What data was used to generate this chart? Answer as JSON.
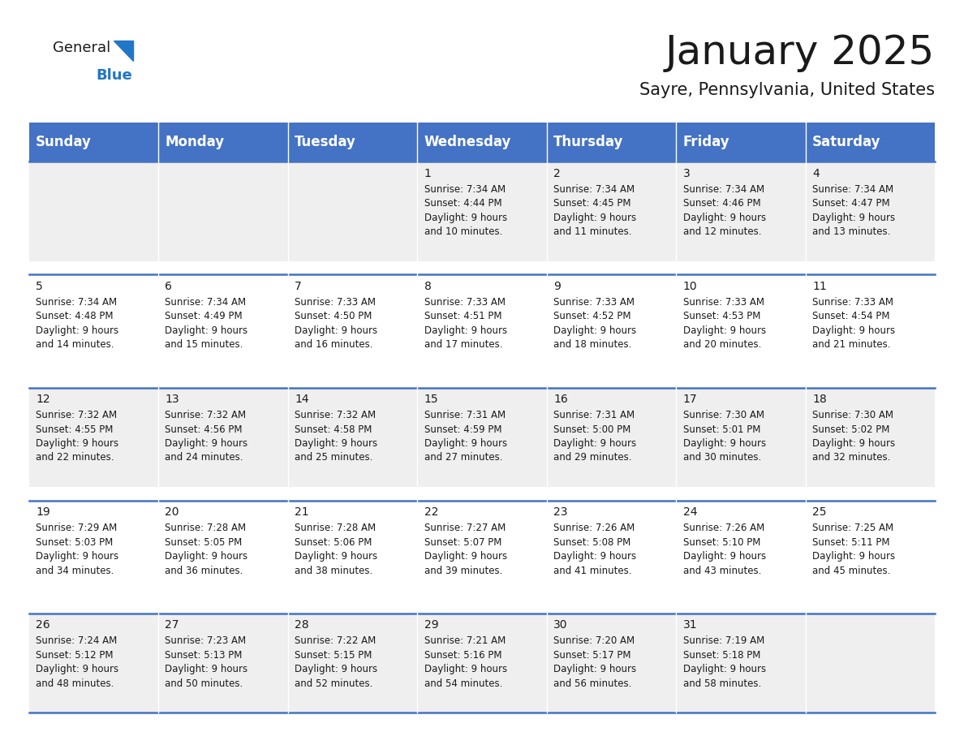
{
  "title": "January 2025",
  "subtitle": "Sayre, Pennsylvania, United States",
  "header_bg_color": "#4472C4",
  "header_text_color": "#FFFFFF",
  "weekdays": [
    "Sunday",
    "Monday",
    "Tuesday",
    "Wednesday",
    "Thursday",
    "Friday",
    "Saturday"
  ],
  "row_bg_even": "#EFEFEF",
  "row_bg_odd": "#FFFFFF",
  "cell_border_color": "#4472C4",
  "title_fontsize": 36,
  "subtitle_fontsize": 15,
  "header_fontsize": 12,
  "cell_fontsize": 8.5,
  "day_num_fontsize": 10,
  "days": [
    {
      "day": 1,
      "col": 3,
      "row": 0,
      "sunrise": "7:34 AM",
      "sunset": "4:44 PM",
      "daylight_line1": "Daylight: 9 hours",
      "daylight_line2": "and 10 minutes."
    },
    {
      "day": 2,
      "col": 4,
      "row": 0,
      "sunrise": "7:34 AM",
      "sunset": "4:45 PM",
      "daylight_line1": "Daylight: 9 hours",
      "daylight_line2": "and 11 minutes."
    },
    {
      "day": 3,
      "col": 5,
      "row": 0,
      "sunrise": "7:34 AM",
      "sunset": "4:46 PM",
      "daylight_line1": "Daylight: 9 hours",
      "daylight_line2": "and 12 minutes."
    },
    {
      "day": 4,
      "col": 6,
      "row": 0,
      "sunrise": "7:34 AM",
      "sunset": "4:47 PM",
      "daylight_line1": "Daylight: 9 hours",
      "daylight_line2": "and 13 minutes."
    },
    {
      "day": 5,
      "col": 0,
      "row": 1,
      "sunrise": "7:34 AM",
      "sunset": "4:48 PM",
      "daylight_line1": "Daylight: 9 hours",
      "daylight_line2": "and 14 minutes."
    },
    {
      "day": 6,
      "col": 1,
      "row": 1,
      "sunrise": "7:34 AM",
      "sunset": "4:49 PM",
      "daylight_line1": "Daylight: 9 hours",
      "daylight_line2": "and 15 minutes."
    },
    {
      "day": 7,
      "col": 2,
      "row": 1,
      "sunrise": "7:33 AM",
      "sunset": "4:50 PM",
      "daylight_line1": "Daylight: 9 hours",
      "daylight_line2": "and 16 minutes."
    },
    {
      "day": 8,
      "col": 3,
      "row": 1,
      "sunrise": "7:33 AM",
      "sunset": "4:51 PM",
      "daylight_line1": "Daylight: 9 hours",
      "daylight_line2": "and 17 minutes."
    },
    {
      "day": 9,
      "col": 4,
      "row": 1,
      "sunrise": "7:33 AM",
      "sunset": "4:52 PM",
      "daylight_line1": "Daylight: 9 hours",
      "daylight_line2": "and 18 minutes."
    },
    {
      "day": 10,
      "col": 5,
      "row": 1,
      "sunrise": "7:33 AM",
      "sunset": "4:53 PM",
      "daylight_line1": "Daylight: 9 hours",
      "daylight_line2": "and 20 minutes."
    },
    {
      "day": 11,
      "col": 6,
      "row": 1,
      "sunrise": "7:33 AM",
      "sunset": "4:54 PM",
      "daylight_line1": "Daylight: 9 hours",
      "daylight_line2": "and 21 minutes."
    },
    {
      "day": 12,
      "col": 0,
      "row": 2,
      "sunrise": "7:32 AM",
      "sunset": "4:55 PM",
      "daylight_line1": "Daylight: 9 hours",
      "daylight_line2": "and 22 minutes."
    },
    {
      "day": 13,
      "col": 1,
      "row": 2,
      "sunrise": "7:32 AM",
      "sunset": "4:56 PM",
      "daylight_line1": "Daylight: 9 hours",
      "daylight_line2": "and 24 minutes."
    },
    {
      "day": 14,
      "col": 2,
      "row": 2,
      "sunrise": "7:32 AM",
      "sunset": "4:58 PM",
      "daylight_line1": "Daylight: 9 hours",
      "daylight_line2": "and 25 minutes."
    },
    {
      "day": 15,
      "col": 3,
      "row": 2,
      "sunrise": "7:31 AM",
      "sunset": "4:59 PM",
      "daylight_line1": "Daylight: 9 hours",
      "daylight_line2": "and 27 minutes."
    },
    {
      "day": 16,
      "col": 4,
      "row": 2,
      "sunrise": "7:31 AM",
      "sunset": "5:00 PM",
      "daylight_line1": "Daylight: 9 hours",
      "daylight_line2": "and 29 minutes."
    },
    {
      "day": 17,
      "col": 5,
      "row": 2,
      "sunrise": "7:30 AM",
      "sunset": "5:01 PM",
      "daylight_line1": "Daylight: 9 hours",
      "daylight_line2": "and 30 minutes."
    },
    {
      "day": 18,
      "col": 6,
      "row": 2,
      "sunrise": "7:30 AM",
      "sunset": "5:02 PM",
      "daylight_line1": "Daylight: 9 hours",
      "daylight_line2": "and 32 minutes."
    },
    {
      "day": 19,
      "col": 0,
      "row": 3,
      "sunrise": "7:29 AM",
      "sunset": "5:03 PM",
      "daylight_line1": "Daylight: 9 hours",
      "daylight_line2": "and 34 minutes."
    },
    {
      "day": 20,
      "col": 1,
      "row": 3,
      "sunrise": "7:28 AM",
      "sunset": "5:05 PM",
      "daylight_line1": "Daylight: 9 hours",
      "daylight_line2": "and 36 minutes."
    },
    {
      "day": 21,
      "col": 2,
      "row": 3,
      "sunrise": "7:28 AM",
      "sunset": "5:06 PM",
      "daylight_line1": "Daylight: 9 hours",
      "daylight_line2": "and 38 minutes."
    },
    {
      "day": 22,
      "col": 3,
      "row": 3,
      "sunrise": "7:27 AM",
      "sunset": "5:07 PM",
      "daylight_line1": "Daylight: 9 hours",
      "daylight_line2": "and 39 minutes."
    },
    {
      "day": 23,
      "col": 4,
      "row": 3,
      "sunrise": "7:26 AM",
      "sunset": "5:08 PM",
      "daylight_line1": "Daylight: 9 hours",
      "daylight_line2": "and 41 minutes."
    },
    {
      "day": 24,
      "col": 5,
      "row": 3,
      "sunrise": "7:26 AM",
      "sunset": "5:10 PM",
      "daylight_line1": "Daylight: 9 hours",
      "daylight_line2": "and 43 minutes."
    },
    {
      "day": 25,
      "col": 6,
      "row": 3,
      "sunrise": "7:25 AM",
      "sunset": "5:11 PM",
      "daylight_line1": "Daylight: 9 hours",
      "daylight_line2": "and 45 minutes."
    },
    {
      "day": 26,
      "col": 0,
      "row": 4,
      "sunrise": "7:24 AM",
      "sunset": "5:12 PM",
      "daylight_line1": "Daylight: 9 hours",
      "daylight_line2": "and 48 minutes."
    },
    {
      "day": 27,
      "col": 1,
      "row": 4,
      "sunrise": "7:23 AM",
      "sunset": "5:13 PM",
      "daylight_line1": "Daylight: 9 hours",
      "daylight_line2": "and 50 minutes."
    },
    {
      "day": 28,
      "col": 2,
      "row": 4,
      "sunrise": "7:22 AM",
      "sunset": "5:15 PM",
      "daylight_line1": "Daylight: 9 hours",
      "daylight_line2": "and 52 minutes."
    },
    {
      "day": 29,
      "col": 3,
      "row": 4,
      "sunrise": "7:21 AM",
      "sunset": "5:16 PM",
      "daylight_line1": "Daylight: 9 hours",
      "daylight_line2": "and 54 minutes."
    },
    {
      "day": 30,
      "col": 4,
      "row": 4,
      "sunrise": "7:20 AM",
      "sunset": "5:17 PM",
      "daylight_line1": "Daylight: 9 hours",
      "daylight_line2": "and 56 minutes."
    },
    {
      "day": 31,
      "col": 5,
      "row": 4,
      "sunrise": "7:19 AM",
      "sunset": "5:18 PM",
      "daylight_line1": "Daylight: 9 hours",
      "daylight_line2": "and 58 minutes."
    }
  ]
}
